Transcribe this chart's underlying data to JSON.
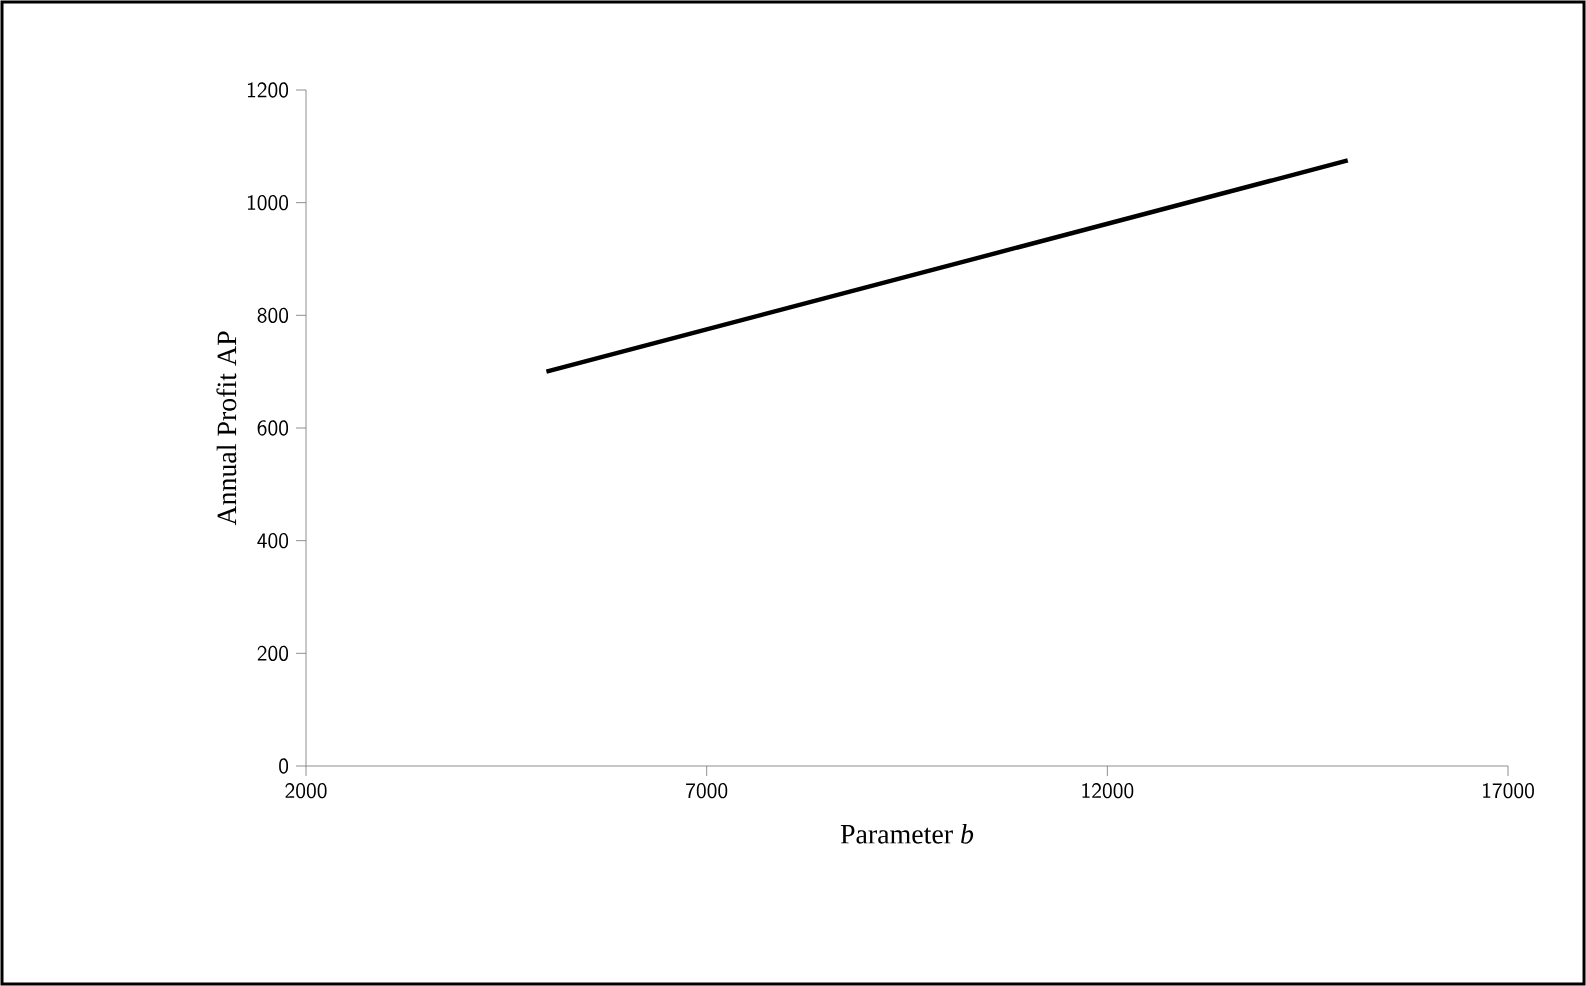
{
  "chart_data": {
    "type": "line",
    "xlabel": "Parameter *b*",
    "ylabel": "Annual Profit AP",
    "series": [
      {
        "color": "#000000",
        "x": [
          5000,
          15000
        ],
        "values": [
          700,
          1075
        ]
      }
    ],
    "xlim": [
      2000,
      17000
    ],
    "xticks": [
      2000,
      7000,
      12000,
      17000
    ],
    "ylim": [
      0,
      1200
    ],
    "yticks": [
      0,
      200,
      400,
      600,
      800,
      1000,
      1200
    ],
    "grid": false,
    "marker": "none",
    "line_style": "solid"
  }
}
